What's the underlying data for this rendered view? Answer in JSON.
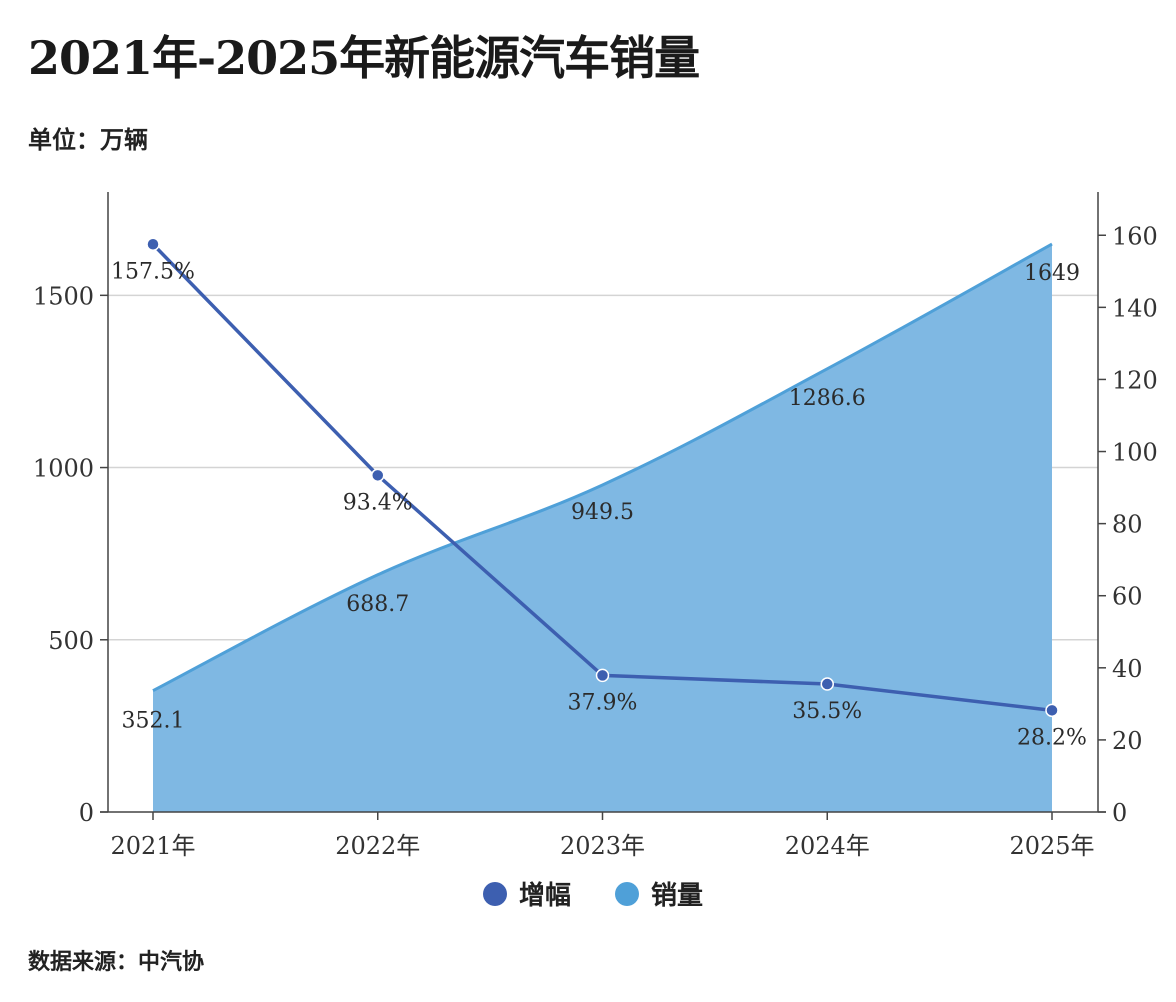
{
  "title": "2021年-2025年新能源汽车销量",
  "unit_label": "单位：万辆",
  "source_label": "数据来源：中汽协",
  "chart_data": {
    "type": "area+line",
    "categories": [
      "2021年",
      "2022年",
      "2023年",
      "2024年",
      "2025年"
    ],
    "series": [
      {
        "name": "销量",
        "type": "area",
        "axis": "left",
        "color": "#4fa0d8",
        "fill": "#7fb8e3",
        "values": [
          352.1,
          688.7,
          949.5,
          1286.6,
          1649
        ],
        "labels": [
          "352.1",
          "688.7",
          "949.5",
          "1286.6",
          "1649"
        ]
      },
      {
        "name": "增幅",
        "type": "line",
        "axis": "right",
        "color": "#3d5fb0",
        "values": [
          157.5,
          93.4,
          37.9,
          35.5,
          28.2
        ],
        "labels": [
          "157.5%",
          "93.4%",
          "37.9%",
          "35.5%",
          "28.2%"
        ]
      }
    ],
    "y_left": {
      "min": 0,
      "max": 1800,
      "ticks": [
        0,
        500,
        1000,
        1500
      ]
    },
    "y_right": {
      "min": 0,
      "max": 172,
      "ticks": [
        0,
        20,
        40,
        60,
        80,
        100,
        120,
        140,
        160
      ]
    },
    "grid": true,
    "legend": {
      "position": "bottom-center",
      "items": [
        "增幅",
        "销量"
      ]
    }
  }
}
